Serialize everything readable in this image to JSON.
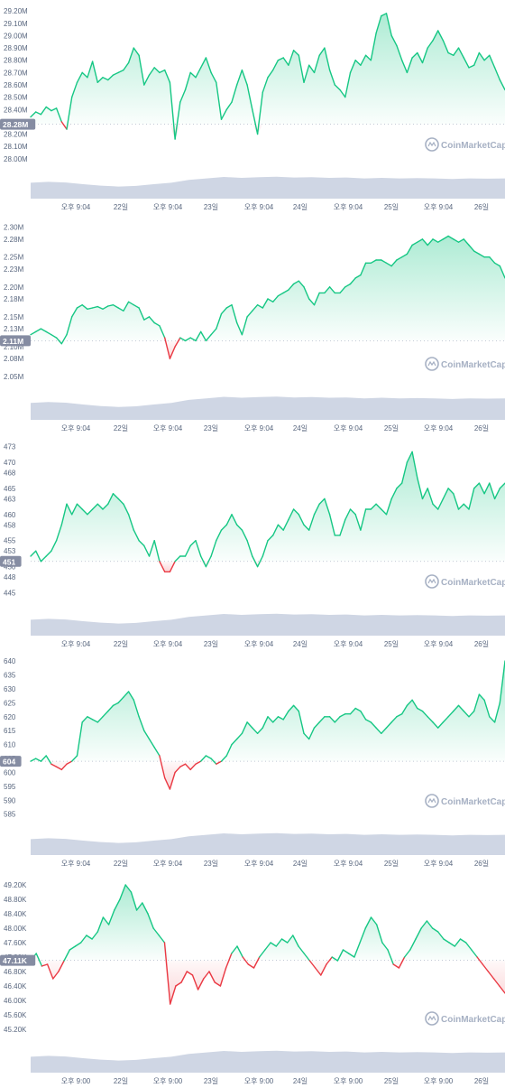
{
  "colors": {
    "up": "#16c784",
    "down": "#ea3943",
    "volume": "#cfd6e4",
    "axis_text": "#58667e",
    "badge": "#858ca2",
    "watermark": "#a6b0c3"
  },
  "watermark": "CoinMarketCap",
  "chart_data": [
    {
      "type": "area",
      "baseline": 28.28,
      "badge_label": "28.28M",
      "yticks": [
        "29.20M",
        "29.10M",
        "29.00M",
        "28.90M",
        "28.80M",
        "28.70M",
        "28.60M",
        "28.50M",
        "28.40M",
        "28.30M",
        "28.20M",
        "28.10M",
        "28.00M"
      ],
      "ylim": [
        27.94,
        29.26
      ],
      "xticks": [
        "오후 9:04",
        "22일",
        "오후 9:04",
        "23일",
        "오후 9:04",
        "24일",
        "오후 9:04",
        "25일",
        "오후 9:04",
        "26일"
      ],
      "values": [
        28.34,
        28.38,
        28.36,
        28.42,
        28.39,
        28.41,
        28.3,
        28.24,
        28.5,
        28.62,
        28.7,
        28.66,
        28.79,
        28.62,
        28.66,
        28.64,
        28.68,
        28.7,
        28.72,
        28.78,
        28.9,
        28.84,
        28.6,
        28.68,
        28.74,
        28.7,
        28.72,
        28.62,
        28.16,
        28.46,
        28.56,
        28.7,
        28.66,
        28.74,
        28.82,
        28.7,
        28.62,
        28.32,
        28.4,
        28.46,
        28.6,
        28.72,
        28.6,
        28.4,
        28.2,
        28.54,
        28.66,
        28.72,
        28.8,
        28.82,
        28.76,
        28.88,
        28.84,
        28.62,
        28.76,
        28.7,
        28.84,
        28.9,
        28.72,
        28.6,
        28.56,
        28.5,
        28.7,
        28.8,
        28.76,
        28.84,
        28.8,
        29.02,
        29.16,
        29.18,
        29.0,
        28.92,
        28.8,
        28.7,
        28.82,
        28.86,
        28.78,
        28.9,
        28.96,
        29.04,
        28.96,
        28.86,
        28.84,
        28.9,
        28.82,
        28.74,
        28.76,
        28.86,
        28.8,
        28.84,
        28.74,
        28.64,
        28.56
      ]
    },
    {
      "type": "area",
      "baseline": 2.11,
      "badge_label": "2.11M",
      "yticks": [
        "2.30M",
        "2.28M",
        "2.25M",
        "2.23M",
        "2.20M",
        "2.18M",
        "2.15M",
        "2.13M",
        "2.10M",
        "2.08M",
        "2.05M"
      ],
      "ylim": [
        2.035,
        2.31
      ],
      "xticks": [
        "오후 9:04",
        "22일",
        "오후 9:04",
        "23일",
        "오후 9:04",
        "24일",
        "오후 9:04",
        "25일",
        "오후 9:04",
        "26일"
      ],
      "values": [
        2.12,
        2.125,
        2.13,
        2.125,
        2.12,
        2.115,
        2.105,
        2.12,
        2.15,
        2.165,
        2.17,
        2.163,
        2.165,
        2.167,
        2.163,
        2.168,
        2.17,
        2.165,
        2.16,
        2.175,
        2.17,
        2.165,
        2.145,
        2.15,
        2.14,
        2.135,
        2.115,
        2.08,
        2.1,
        2.115,
        2.11,
        2.115,
        2.11,
        2.125,
        2.11,
        2.12,
        2.13,
        2.155,
        2.165,
        2.17,
        2.14,
        2.12,
        2.15,
        2.16,
        2.17,
        2.165,
        2.18,
        2.175,
        2.185,
        2.19,
        2.195,
        2.205,
        2.21,
        2.2,
        2.18,
        2.17,
        2.19,
        2.19,
        2.2,
        2.19,
        2.19,
        2.2,
        2.205,
        2.215,
        2.22,
        2.24,
        2.24,
        2.245,
        2.245,
        2.24,
        2.235,
        2.245,
        2.25,
        2.255,
        2.27,
        2.275,
        2.28,
        2.27,
        2.28,
        2.275,
        2.28,
        2.285,
        2.28,
        2.275,
        2.28,
        2.27,
        2.26,
        2.255,
        2.25,
        2.25,
        2.24,
        2.235,
        2.215
      ]
    },
    {
      "type": "area",
      "baseline": 451,
      "badge_label": "451",
      "yticks": [
        "473",
        "470",
        "468",
        "465",
        "463",
        "460",
        "458",
        "455",
        "453",
        "450",
        "448",
        "445"
      ],
      "ylim": [
        443,
        474.5
      ],
      "xticks": [
        "오후 9:04",
        "22일",
        "오후 9:04",
        "23일",
        "오후 9:04",
        "24일",
        "오후 9:04",
        "25일",
        "오후 9:04",
        "26일"
      ],
      "values": [
        452,
        453,
        451,
        452,
        453,
        455,
        458,
        462,
        460,
        462,
        461,
        460,
        461,
        462,
        461,
        462,
        464,
        463,
        462,
        460,
        457,
        455,
        454,
        452,
        455,
        451,
        449,
        449,
        451,
        452,
        452,
        454,
        455,
        452,
        450,
        452,
        455,
        457,
        458,
        460,
        458,
        457,
        455,
        452,
        450,
        452,
        455,
        456,
        458,
        457,
        459,
        461,
        460,
        458,
        457,
        460,
        462,
        463,
        460,
        456,
        456,
        459,
        461,
        460,
        457,
        461,
        461,
        462,
        461,
        460,
        463,
        465,
        466,
        470,
        472,
        467,
        463,
        465,
        462,
        461,
        463,
        465,
        464,
        461,
        462,
        461,
        465,
        466,
        464,
        466,
        463,
        465,
        466
      ]
    },
    {
      "type": "area",
      "baseline": 604,
      "badge_label": "604",
      "yticks": [
        "640",
        "635",
        "630",
        "625",
        "620",
        "615",
        "610",
        "605",
        "600",
        "595",
        "590",
        "585"
      ],
      "ylim": [
        582,
        641
      ],
      "xticks": [
        "오후 9:04",
        "22일",
        "오후 9:04",
        "23일",
        "오후 9:04",
        "24일",
        "오후 9:04",
        "25일",
        "오후 9:04",
        "26일"
      ],
      "values": [
        604,
        605,
        604,
        606,
        603,
        602,
        601,
        603,
        604,
        606,
        618,
        620,
        619,
        618,
        620,
        622,
        624,
        625,
        627,
        629,
        626,
        620,
        615,
        612,
        609,
        606,
        598,
        594,
        600,
        602,
        603,
        601,
        603,
        604,
        606,
        605,
        603,
        604,
        606,
        610,
        612,
        614,
        618,
        616,
        614,
        616,
        620,
        618,
        620,
        619,
        622,
        624,
        622,
        614,
        612,
        616,
        618,
        620,
        620,
        618,
        620,
        621,
        621,
        623,
        622,
        619,
        618,
        616,
        614,
        616,
        618,
        620,
        621,
        624,
        626,
        623,
        622,
        620,
        618,
        616,
        618,
        620,
        622,
        624,
        622,
        620,
        622,
        628,
        626,
        620,
        618,
        625,
        640
      ]
    },
    {
      "type": "area",
      "baseline": 47.11,
      "badge_label": "47.11K",
      "yticks": [
        "49.20K",
        "48.80K",
        "48.40K",
        "48.00K",
        "47.60K",
        "47.20K",
        "46.80K",
        "46.40K",
        "46.00K",
        "45.60K",
        "45.20K"
      ],
      "ylim": [
        44.9,
        49.45
      ],
      "xticks": [
        "오후 9:00",
        "22일",
        "오후 9:00",
        "23일",
        "오후 9:00",
        "24일",
        "오후 9:00",
        "25일",
        "오후 9:00",
        "26일"
      ],
      "values": [
        47.1,
        47.3,
        46.95,
        47.0,
        46.6,
        46.8,
        47.1,
        47.4,
        47.5,
        47.6,
        47.8,
        47.7,
        47.9,
        48.3,
        48.1,
        48.5,
        48.8,
        49.2,
        49.0,
        48.5,
        48.7,
        48.4,
        48.0,
        47.8,
        47.6,
        45.9,
        46.4,
        46.5,
        46.8,
        46.7,
        46.3,
        46.6,
        46.8,
        46.5,
        46.4,
        46.9,
        47.3,
        47.5,
        47.2,
        47.0,
        46.9,
        47.2,
        47.4,
        47.6,
        47.5,
        47.7,
        47.6,
        47.8,
        47.5,
        47.3,
        47.1,
        46.9,
        46.7,
        47.0,
        47.2,
        47.1,
        47.4,
        47.3,
        47.2,
        47.6,
        48.0,
        48.3,
        48.1,
        47.6,
        47.4,
        47.0,
        46.9,
        47.2,
        47.4,
        47.7,
        48.0,
        48.2,
        48.0,
        47.9,
        47.7,
        47.6,
        47.5,
        47.7,
        47.6,
        47.4,
        47.2,
        47.0,
        46.8,
        46.6,
        46.4,
        46.2
      ]
    }
  ]
}
